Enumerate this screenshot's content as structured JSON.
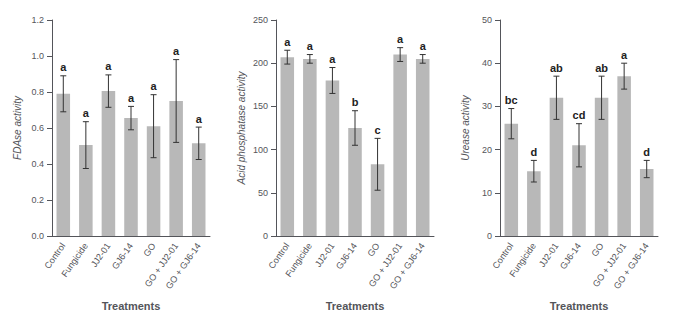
{
  "chart_data": [
    {
      "type": "bar",
      "categories": [
        "Control",
        "Fungicide",
        "JJ2-01",
        "GJ6-14",
        "GO",
        "GO + JJ2-01",
        "GO + GJ6-14"
      ],
      "values": [
        0.79,
        0.505,
        0.805,
        0.655,
        0.61,
        0.75,
        0.515
      ],
      "errors": [
        0.1,
        0.13,
        0.09,
        0.065,
        0.175,
        0.23,
        0.09
      ],
      "letters": [
        "a",
        "a",
        "a",
        "a",
        "a",
        "a",
        "a"
      ],
      "xlabel": "Treatments",
      "ylabel": "FDAse activity",
      "color": "#b8b8b8",
      "ylim": [
        0,
        1.2
      ],
      "yticks": [
        {
          "value": 0,
          "label": "0.0"
        },
        0.2,
        0.4,
        0.6,
        0.8,
        {
          "value": 1,
          "label": "1.0"
        },
        1.2
      ],
      "grid": false
    },
    {
      "type": "bar",
      "categories": [
        "Control",
        "Fungicide",
        "JJ2-01",
        "GJ6-14",
        "GO",
        "GO + JJ2-01",
        "GO + GJ6-14"
      ],
      "values": [
        207,
        205,
        180,
        125,
        83,
        210,
        205
      ],
      "errors": [
        8,
        5,
        15,
        20,
        30,
        8,
        5
      ],
      "letters": [
        "a",
        "a",
        "a",
        "b",
        "c",
        "a",
        "a"
      ],
      "xlabel": "Treatments",
      "ylabel": "Acid phosphatase activity",
      "color": "#b8b8b8",
      "ylim": [
        0,
        250
      ],
      "yticks": [
        0,
        50,
        100,
        150,
        200,
        250
      ],
      "grid": false
    },
    {
      "type": "bar",
      "categories": [
        "Control",
        "Fungicide",
        "JJ2-01",
        "GJ6-14",
        "GO",
        "GO + JJ2-01",
        "GO + GJ6-14"
      ],
      "values": [
        26,
        15,
        32,
        21,
        32,
        37,
        15.5
      ],
      "errors": [
        3.5,
        2.5,
        5,
        5,
        5,
        3,
        2
      ],
      "letters": [
        "bc",
        "d",
        "ab",
        "cd",
        "ab",
        "a",
        "d"
      ],
      "xlabel": "Treatments",
      "ylabel": "Urease activity",
      "color": "#b8b8b8",
      "ylim": [
        0,
        50
      ],
      "yticks": [
        0,
        10,
        20,
        30,
        40,
        50
      ],
      "grid": false
    }
  ]
}
